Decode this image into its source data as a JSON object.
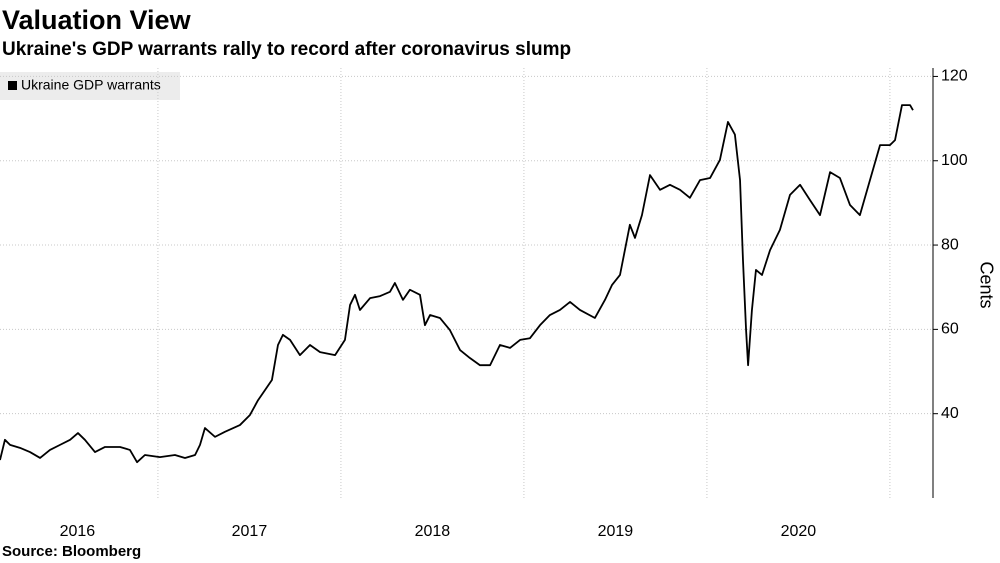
{
  "chart_data": {
    "type": "line",
    "title": "Valuation View",
    "subtitle": "Ukraine's GDP warrants rally to record after coronavirus slump",
    "source": "Source: Bloomberg",
    "y_axis_label": "Cents",
    "x": [
      2016.137,
      2016.164,
      2016.192,
      2016.246,
      2016.301,
      2016.356,
      2016.41,
      2016.465,
      2016.52,
      2016.563,
      2016.601,
      2016.656,
      2016.711,
      2016.793,
      2016.847,
      2016.886,
      2016.929,
      2017.011,
      2017.093,
      2017.148,
      2017.203,
      2017.23,
      2017.257,
      2017.312,
      2017.366,
      2017.448,
      2017.503,
      2017.547,
      2017.585,
      2017.623,
      2017.656,
      2017.683,
      2017.722,
      2017.776,
      2017.831,
      2017.886,
      2017.968,
      2018.022,
      2018.05,
      2018.077,
      2018.104,
      2018.159,
      2018.214,
      2018.268,
      2018.295,
      2018.339,
      2018.377,
      2018.432,
      2018.459,
      2018.487,
      2018.541,
      2018.596,
      2018.651,
      2018.705,
      2018.76,
      2018.815,
      2018.869,
      2018.924,
      2018.979,
      2019.033,
      2019.088,
      2019.142,
      2019.197,
      2019.252,
      2019.306,
      2019.388,
      2019.443,
      2019.481,
      2019.525,
      2019.579,
      2019.607,
      2019.645,
      2019.689,
      2019.744,
      2019.798,
      2019.853,
      2019.907,
      2019.962,
      2020.017,
      2020.071,
      2020.115,
      2020.153,
      2020.181,
      2020.197,
      2020.214,
      2020.225,
      2020.246,
      2020.268,
      2020.301,
      2020.345,
      2020.399,
      2020.454,
      2020.509,
      2020.563,
      2020.618,
      2020.673,
      2020.727,
      2020.782,
      2020.836,
      2020.891,
      2020.946,
      2021.0,
      2021.028,
      2021.066,
      2021.11,
      2021.126
    ],
    "series": [
      {
        "name": "Ukraine GDP warrants",
        "color": "#000000",
        "values": [
          29.0,
          33.8,
          32.6,
          31.9,
          30.9,
          29.5,
          31.4,
          32.6,
          33.8,
          35.4,
          33.8,
          30.9,
          32.1,
          32.1,
          31.4,
          28.5,
          30.2,
          29.7,
          30.2,
          29.5,
          30.2,
          32.6,
          36.6,
          34.5,
          35.7,
          37.3,
          39.7,
          43.2,
          45.6,
          48.0,
          56.3,
          58.7,
          57.5,
          53.9,
          56.3,
          54.6,
          53.9,
          57.5,
          65.8,
          68.2,
          64.6,
          67.4,
          67.9,
          68.9,
          71.0,
          67.0,
          69.4,
          68.2,
          61.0,
          63.4,
          62.7,
          59.8,
          55.1,
          53.2,
          51.5,
          51.5,
          56.3,
          55.6,
          57.5,
          57.9,
          61.0,
          63.4,
          64.6,
          66.5,
          64.6,
          62.7,
          67.0,
          70.5,
          72.9,
          84.8,
          81.7,
          87.1,
          96.6,
          93.1,
          94.3,
          93.1,
          91.2,
          95.4,
          95.9,
          100.2,
          109.2,
          106.2,
          95.4,
          76.5,
          59.8,
          51.5,
          64.6,
          74.1,
          72.9,
          78.8,
          83.6,
          91.9,
          94.3,
          90.7,
          87.1,
          97.3,
          95.9,
          89.5,
          87.1,
          95.4,
          103.7,
          103.7,
          104.9,
          113.2,
          113.2,
          112.0
        ]
      }
    ],
    "xlim": [
      2016.137,
      2021.23
    ],
    "xticks": [
      {
        "value": 2016.56,
        "label": "2016"
      },
      {
        "value": 2017.5,
        "label": "2017"
      },
      {
        "value": 2018.5,
        "label": "2018"
      },
      {
        "value": 2019.5,
        "label": "2019"
      },
      {
        "value": 2020.5,
        "label": "2020"
      }
    ],
    "xgrid": [
      2017,
      2018,
      2019,
      2020,
      2021
    ],
    "ylim": [
      20,
      122
    ],
    "yticks": [
      40,
      60,
      80,
      100,
      120
    ],
    "grid": true
  }
}
